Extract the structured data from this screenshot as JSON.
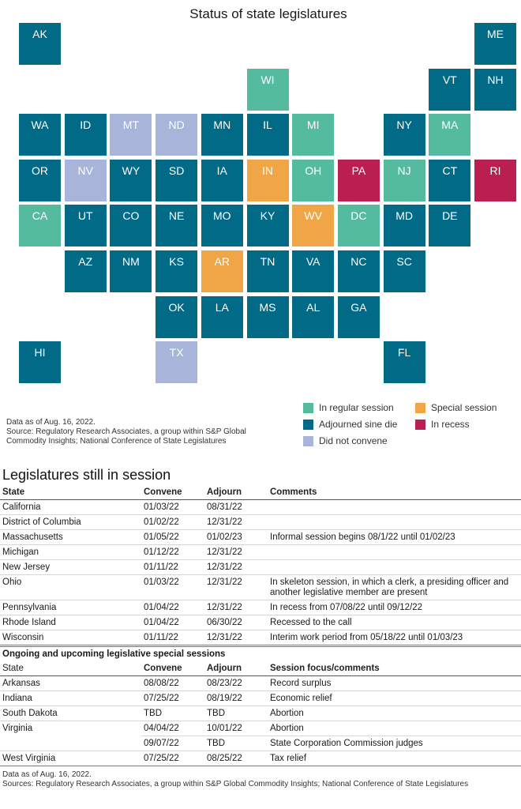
{
  "chart_data": {
    "type": "tile-map",
    "title": "Status of state legislatures",
    "categories": {
      "regular": {
        "label": "In regular session",
        "color": "#55bb9f"
      },
      "adjourned": {
        "label": "Adjourned sine die",
        "color": "#006a87"
      },
      "notconvene": {
        "label": "Did not convene",
        "color": "#a9b4da"
      },
      "special": {
        "label": "Special session",
        "color": "#f0a647"
      },
      "recess": {
        "label": "In recess",
        "color": "#b91f50"
      }
    },
    "legend_order": [
      "regular",
      "adjourned",
      "notconvene",
      "special",
      "recess"
    ],
    "states": [
      {
        "abbr": "AK",
        "row": 0,
        "col": 0,
        "status": "adjourned"
      },
      {
        "abbr": "ME",
        "row": 0,
        "col": 10,
        "status": "adjourned"
      },
      {
        "abbr": "WI",
        "row": 1,
        "col": 5,
        "status": "regular"
      },
      {
        "abbr": "VT",
        "row": 1,
        "col": 9,
        "status": "adjourned"
      },
      {
        "abbr": "NH",
        "row": 1,
        "col": 10,
        "status": "adjourned"
      },
      {
        "abbr": "WA",
        "row": 2,
        "col": 0,
        "status": "adjourned"
      },
      {
        "abbr": "ID",
        "row": 2,
        "col": 1,
        "status": "adjourned"
      },
      {
        "abbr": "MT",
        "row": 2,
        "col": 2,
        "status": "notconvene"
      },
      {
        "abbr": "ND",
        "row": 2,
        "col": 3,
        "status": "notconvene"
      },
      {
        "abbr": "MN",
        "row": 2,
        "col": 4,
        "status": "adjourned"
      },
      {
        "abbr": "IL",
        "row": 2,
        "col": 5,
        "status": "adjourned"
      },
      {
        "abbr": "MI",
        "row": 2,
        "col": 6,
        "status": "regular"
      },
      {
        "abbr": "NY",
        "row": 2,
        "col": 8,
        "status": "adjourned"
      },
      {
        "abbr": "MA",
        "row": 2,
        "col": 9,
        "status": "regular"
      },
      {
        "abbr": "OR",
        "row": 3,
        "col": 0,
        "status": "adjourned"
      },
      {
        "abbr": "NV",
        "row": 3,
        "col": 1,
        "status": "notconvene"
      },
      {
        "abbr": "WY",
        "row": 3,
        "col": 2,
        "status": "adjourned"
      },
      {
        "abbr": "SD",
        "row": 3,
        "col": 3,
        "status": "adjourned"
      },
      {
        "abbr": "IA",
        "row": 3,
        "col": 4,
        "status": "adjourned"
      },
      {
        "abbr": "IN",
        "row": 3,
        "col": 5,
        "status": "special"
      },
      {
        "abbr": "OH",
        "row": 3,
        "col": 6,
        "status": "regular"
      },
      {
        "abbr": "PA",
        "row": 3,
        "col": 7,
        "status": "recess"
      },
      {
        "abbr": "NJ",
        "row": 3,
        "col": 8,
        "status": "regular"
      },
      {
        "abbr": "CT",
        "row": 3,
        "col": 9,
        "status": "adjourned"
      },
      {
        "abbr": "RI",
        "row": 3,
        "col": 10,
        "status": "recess"
      },
      {
        "abbr": "CA",
        "row": 4,
        "col": 0,
        "status": "regular"
      },
      {
        "abbr": "UT",
        "row": 4,
        "col": 1,
        "status": "adjourned"
      },
      {
        "abbr": "CO",
        "row": 4,
        "col": 2,
        "status": "adjourned"
      },
      {
        "abbr": "NE",
        "row": 4,
        "col": 3,
        "status": "adjourned"
      },
      {
        "abbr": "MO",
        "row": 4,
        "col": 4,
        "status": "adjourned"
      },
      {
        "abbr": "KY",
        "row": 4,
        "col": 5,
        "status": "adjourned"
      },
      {
        "abbr": "WV",
        "row": 4,
        "col": 6,
        "status": "special"
      },
      {
        "abbr": "DC",
        "row": 4,
        "col": 7,
        "status": "regular"
      },
      {
        "abbr": "MD",
        "row": 4,
        "col": 8,
        "status": "adjourned"
      },
      {
        "abbr": "DE",
        "row": 4,
        "col": 9,
        "status": "adjourned"
      },
      {
        "abbr": "AZ",
        "row": 5,
        "col": 1,
        "status": "adjourned"
      },
      {
        "abbr": "NM",
        "row": 5,
        "col": 2,
        "status": "adjourned"
      },
      {
        "abbr": "KS",
        "row": 5,
        "col": 3,
        "status": "adjourned"
      },
      {
        "abbr": "AR",
        "row": 5,
        "col": 4,
        "status": "special"
      },
      {
        "abbr": "TN",
        "row": 5,
        "col": 5,
        "status": "adjourned"
      },
      {
        "abbr": "VA",
        "row": 5,
        "col": 6,
        "status": "adjourned"
      },
      {
        "abbr": "NC",
        "row": 5,
        "col": 7,
        "status": "adjourned"
      },
      {
        "abbr": "SC",
        "row": 5,
        "col": 8,
        "status": "adjourned"
      },
      {
        "abbr": "OK",
        "row": 6,
        "col": 3,
        "status": "adjourned"
      },
      {
        "abbr": "LA",
        "row": 6,
        "col": 4,
        "status": "adjourned"
      },
      {
        "abbr": "MS",
        "row": 6,
        "col": 5,
        "status": "adjourned"
      },
      {
        "abbr": "AL",
        "row": 6,
        "col": 6,
        "status": "adjourned"
      },
      {
        "abbr": "GA",
        "row": 6,
        "col": 7,
        "status": "adjourned"
      },
      {
        "abbr": "HI",
        "row": 7,
        "col": 0,
        "status": "adjourned"
      },
      {
        "abbr": "TX",
        "row": 7,
        "col": 3,
        "status": "notconvene"
      },
      {
        "abbr": "FL",
        "row": 7,
        "col": 8,
        "status": "adjourned"
      }
    ]
  },
  "map_notes": {
    "line1": "Data as of Aug. 16, 2022.",
    "line2": "Source: Regulatory Research Associates, a group within S&P Global Commodity Insights; National Conference of State Legislatures"
  },
  "tables": {
    "title": "Legislatures still in session",
    "session": {
      "headers": [
        "State",
        "Convene",
        "Adjourn",
        "Comments"
      ],
      "rows": [
        [
          "California",
          "01/03/22",
          "08/31/22",
          ""
        ],
        [
          "District of Columbia",
          "01/02/22",
          "12/31/22",
          ""
        ],
        [
          "Massachusetts",
          "01/05/22",
          "01/02/23",
          "Informal session begins 08/1/22 until 01/02/23"
        ],
        [
          "Michigan",
          "01/12/22",
          "12/31/22",
          ""
        ],
        [
          "New Jersey",
          "01/11/22",
          "12/31/22",
          ""
        ],
        [
          "Ohio",
          "01/03/22",
          "12/31/22",
          "In skeleton session, in which a clerk, a presiding officer and another legislative member are present"
        ],
        [
          "Pennsylvania",
          "01/04/22",
          "12/31/22",
          "In recess from 07/08/22 until 09/12/22"
        ],
        [
          "Rhode Island",
          "01/04/22",
          "06/30/22",
          "Recessed to the call"
        ],
        [
          "Wisconsin",
          "01/11/22",
          "12/31/22",
          "Interim work period from 05/18/22 until 01/03/23"
        ]
      ]
    },
    "special": {
      "section_title": "Ongoing and upcoming legislative special sessions",
      "headers": [
        "State",
        "Convene",
        "Adjourn",
        "Session focus/comments"
      ],
      "rows": [
        [
          "Arkansas",
          "08/08/22",
          "08/23/22",
          "Record surplus"
        ],
        [
          "Indiana",
          "07/25/22",
          "08/19/22",
          "Economic relief"
        ],
        [
          "South Dakota",
          "TBD",
          "TBD",
          "Abortion"
        ],
        [
          "Virginia",
          "04/04/22",
          "10/01/22",
          "Abortion"
        ],
        [
          "",
          "09/07/22",
          "TBD",
          "State Corporation Commission judges"
        ],
        [
          "West Virginia",
          "07/25/22",
          "08/25/22",
          "Tax relief"
        ]
      ]
    },
    "notes": {
      "line1": "Data as of Aug. 16, 2022.",
      "line2": "Sources: Regulatory Research Associates, a group within S&P Global Commodity Insights; National Conference of State Legislatures"
    }
  }
}
